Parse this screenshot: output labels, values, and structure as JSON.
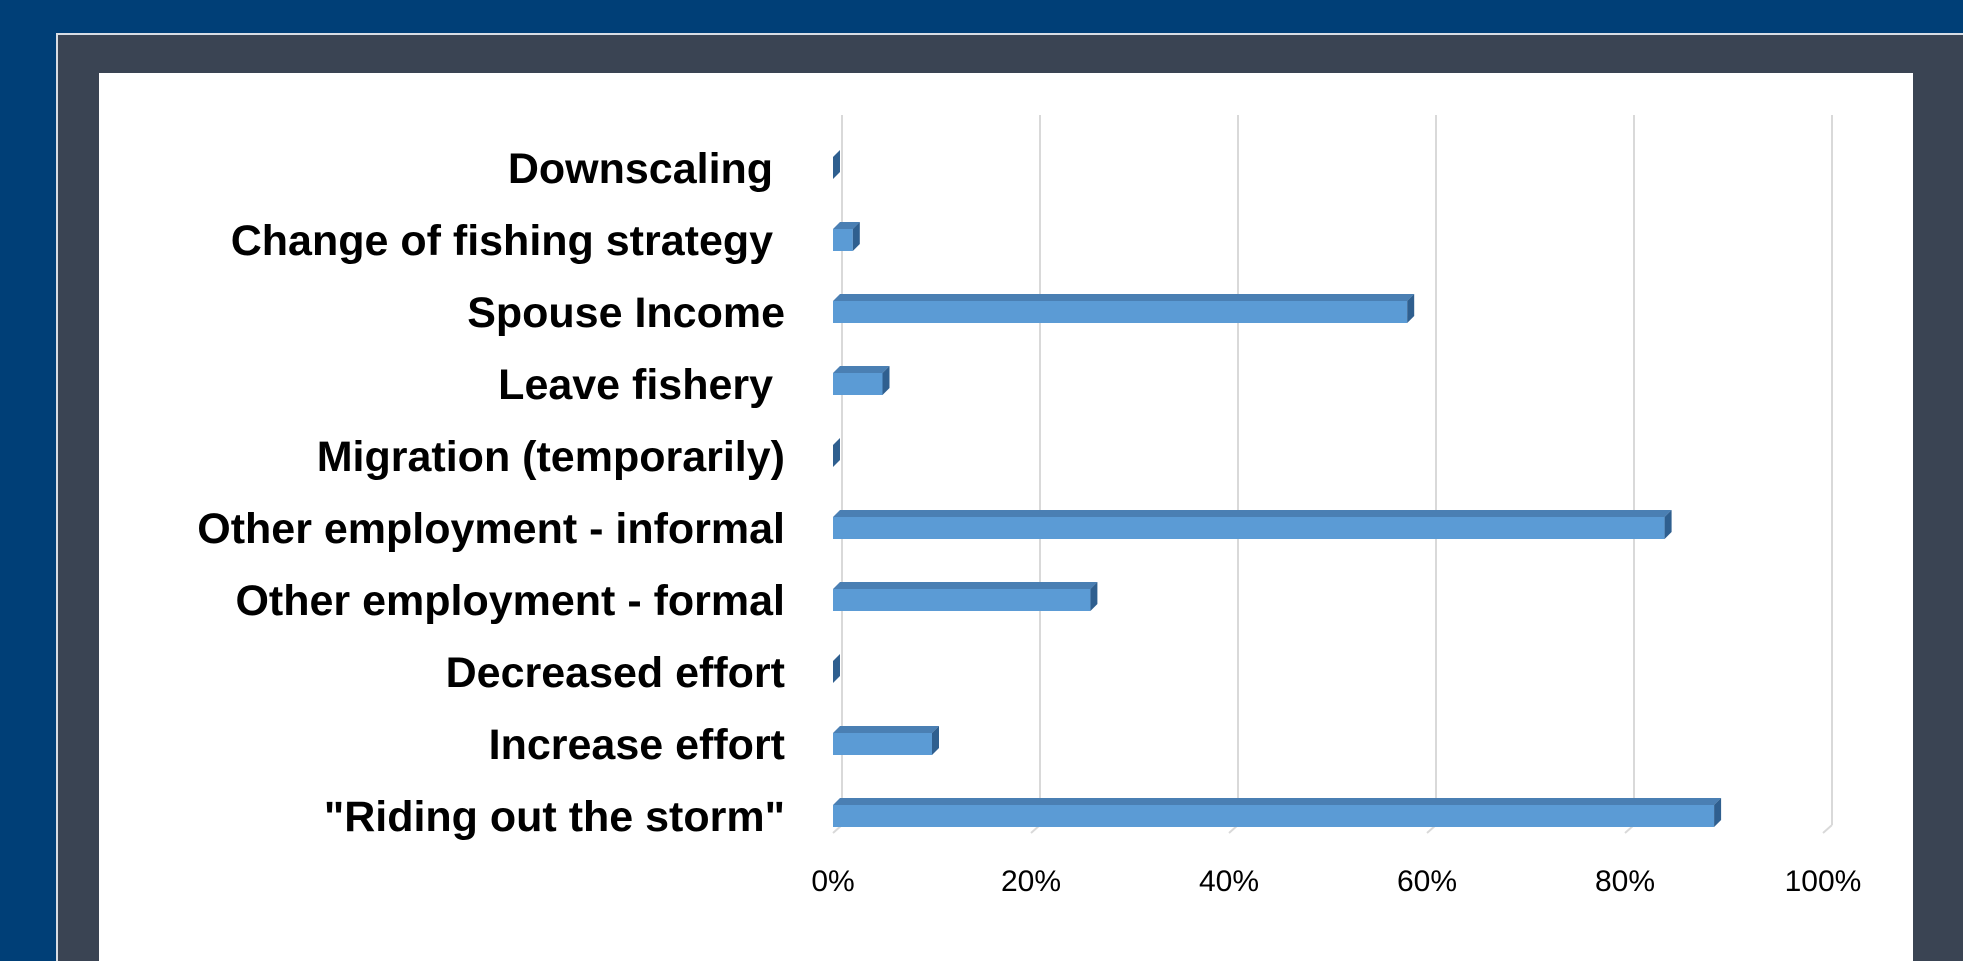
{
  "colors": {
    "background": "#003f77",
    "frame": "#3a4453",
    "panel": "#ffffff",
    "bar_front": "#5b9bd5",
    "bar_top": "#4a7fb3",
    "bar_side": "#2f5f8f",
    "grid": "#d9d9d9"
  },
  "chart_data": {
    "type": "bar",
    "orientation": "horizontal",
    "style": "3d",
    "categories": [
      "Downscaling ",
      "Change of fishing strategy ",
      "Spouse Income",
      "Leave fishery ",
      "Migration (temporarily)",
      "Other employment - informal",
      "Other employment - formal",
      "Decreased effort",
      "Increase effort",
      "\"Riding out the storm\""
    ],
    "values": [
      0,
      2,
      58,
      5,
      0,
      84,
      26,
      0,
      10,
      89
    ],
    "xlim": [
      0,
      100
    ],
    "xticks": [
      "0%",
      "20%",
      "40%",
      "60%",
      "80%",
      "100%"
    ],
    "grid": true,
    "legend": false,
    "title": "",
    "xlabel": "",
    "ylabel": ""
  }
}
